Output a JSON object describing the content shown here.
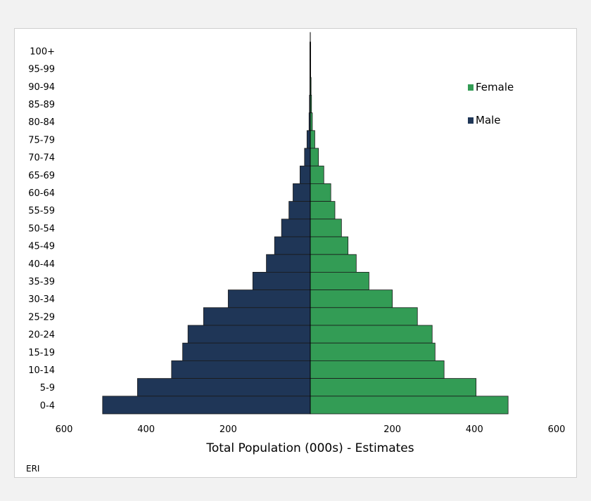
{
  "chart_data": {
    "type": "bar",
    "orientation": "horizontal",
    "subtype": "population-pyramid",
    "categories": [
      "100+",
      "95-99",
      "90-94",
      "85-89",
      "80-84",
      "75-79",
      "70-74",
      "65-69",
      "60-64",
      "55-59",
      "50-54",
      "45-49",
      "40-44",
      "35-39",
      "30-34",
      "25-29",
      "20-24",
      "15-19",
      "10-14",
      "5-9",
      "0-4"
    ],
    "series": [
      {
        "name": "Female",
        "color": "#339c55",
        "values": [
          1,
          1,
          2,
          3,
          5,
          11,
          20,
          33,
          50,
          60,
          76,
          92,
          112,
          143,
          200,
          261,
          297,
          304,
          326,
          404,
          482
        ]
      },
      {
        "name": "Male",
        "color": "#1f3657",
        "values": [
          1,
          1,
          1,
          2,
          3,
          8,
          14,
          25,
          42,
          52,
          70,
          87,
          107,
          140,
          200,
          260,
          298,
          311,
          338,
          421,
          506
        ]
      }
    ],
    "x_ticks": [
      "600",
      "400",
      "200",
      "",
      "200",
      "400",
      "600"
    ],
    "xlim": [
      -600,
      600
    ],
    "xlabel": "Total Population (000s) - Estimates",
    "legend_position": "top-right",
    "grid": false,
    "country_code": "ERI"
  }
}
